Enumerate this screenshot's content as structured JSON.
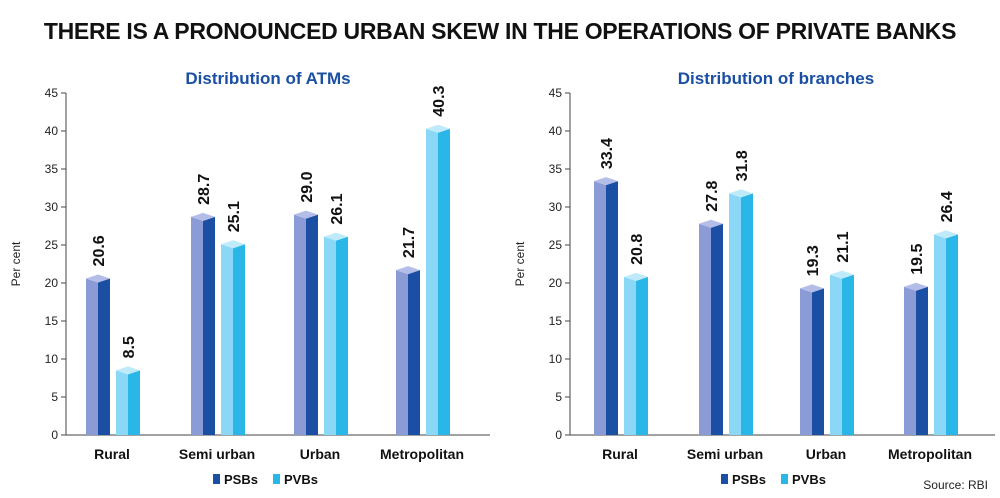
{
  "title": "THERE IS A PRONOUNCED URBAN SKEW IN THE OPERATIONS OF PRIVATE BANKS",
  "source": "Source: RBI",
  "colors": {
    "psb_front": "#1a4fa3",
    "psb_side": "#8b9bd6",
    "psb_top": "#b3bde8",
    "pvb_front": "#2bb6e8",
    "pvb_side": "#8ad8f5",
    "pvb_top": "#bfeafa",
    "title_blue": "#1a4fa3"
  },
  "chart_data": [
    {
      "type": "bar",
      "title": "Distribution of ATMs",
      "ylabel": "Per cent",
      "ylim": [
        0,
        45
      ],
      "yticks": [
        0,
        5,
        10,
        15,
        20,
        25,
        30,
        35,
        40,
        45
      ],
      "categories": [
        "Rural",
        "Semi urban",
        "Urban",
        "Metropolitan"
      ],
      "series": [
        {
          "name": "PSBs",
          "values": [
            20.6,
            28.7,
            29.0,
            21.7
          ],
          "labels": [
            "20.6",
            "28.7",
            "29.0",
            "21.7"
          ]
        },
        {
          "name": "PVBs",
          "values": [
            8.5,
            25.1,
            26.1,
            40.3
          ],
          "labels": [
            "8.5",
            "25.1",
            "26.1",
            "40.3"
          ]
        }
      ],
      "legend": "bottom-center"
    },
    {
      "type": "bar",
      "title": "Distribution of branches",
      "ylabel": "Per cent",
      "ylim": [
        0,
        45
      ],
      "yticks": [
        0,
        5,
        10,
        15,
        20,
        25,
        30,
        35,
        40,
        45
      ],
      "categories": [
        "Rural",
        "Semi urban",
        "Urban",
        "Metropolitan"
      ],
      "series": [
        {
          "name": "PSBs",
          "values": [
            33.4,
            27.8,
            19.3,
            19.5
          ],
          "labels": [
            "33.4",
            "27.8",
            "19.3",
            "19.5"
          ]
        },
        {
          "name": "PVBs",
          "values": [
            20.8,
            31.8,
            21.1,
            26.4
          ],
          "labels": [
            "20.8",
            "31.8",
            "21.1",
            "26.4"
          ]
        }
      ],
      "legend": "bottom-center"
    }
  ]
}
